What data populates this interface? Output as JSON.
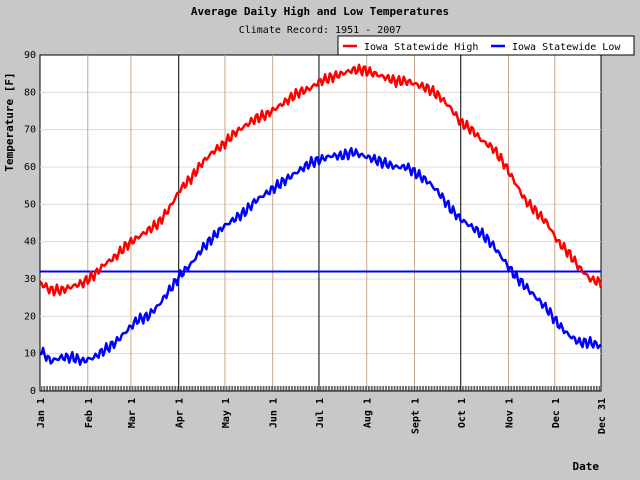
{
  "chart_data": {
    "type": "line",
    "title": "Average Daily High and Low Temperatures",
    "subtitle": "Climate Record: 1951 - 2007",
    "xlabel": "Date",
    "ylabel": "Temperature [F]",
    "ylim": [
      0,
      90
    ],
    "xlim_day_of_year": [
      1,
      365
    ],
    "y_ticks": [
      0,
      10,
      20,
      30,
      40,
      50,
      60,
      70,
      80,
      90
    ],
    "x_ticks": [
      {
        "label": "Jan 1",
        "day": 1
      },
      {
        "label": "Feb 1",
        "day": 32
      },
      {
        "label": "Mar 1",
        "day": 60
      },
      {
        "label": "Apr 1",
        "day": 91
      },
      {
        "label": "May 1",
        "day": 121
      },
      {
        "label": "Jun 1",
        "day": 152
      },
      {
        "label": "Jul 1",
        "day": 182
      },
      {
        "label": "Aug 1",
        "day": 213
      },
      {
        "label": "Sept 1",
        "day": 244
      },
      {
        "label": "Oct 1",
        "day": 274
      },
      {
        "label": "Nov 1",
        "day": 305
      },
      {
        "label": "Dec 1",
        "day": 335
      },
      {
        "label": "Dec 31",
        "day": 365
      }
    ],
    "grid": true,
    "legend_position": "top-right",
    "series": [
      {
        "name": "Iowa Statewide High",
        "color": "#ff0000",
        "x_day_of_year": [
          1,
          8,
          15,
          22,
          29,
          36,
          43,
          50,
          57,
          64,
          71,
          78,
          85,
          92,
          99,
          106,
          113,
          120,
          127,
          134,
          141,
          148,
          155,
          162,
          169,
          176,
          183,
          190,
          197,
          204,
          211,
          218,
          225,
          232,
          239,
          246,
          253,
          260,
          267,
          274,
          281,
          288,
          295,
          302,
          309,
          316,
          323,
          330,
          337,
          344,
          351,
          358,
          365
        ],
        "values": [
          29,
          27,
          27,
          28,
          29,
          31,
          34,
          36,
          39,
          41,
          43,
          45,
          49,
          54,
          57,
          61,
          64,
          66,
          69,
          71,
          73,
          74,
          76,
          78,
          80,
          81,
          83,
          84,
          85,
          86,
          86,
          85,
          84,
          83,
          83,
          82,
          81,
          79,
          76,
          72,
          70,
          67,
          65,
          61,
          56,
          51,
          48,
          45,
          40,
          37,
          33,
          30,
          29
        ]
      },
      {
        "name": "Iowa Statewide Low",
        "color": "#0000ff",
        "x_day_of_year": [
          1,
          8,
          15,
          22,
          29,
          36,
          43,
          50,
          57,
          64,
          71,
          78,
          85,
          92,
          99,
          106,
          113,
          120,
          127,
          134,
          141,
          148,
          155,
          162,
          169,
          176,
          183,
          190,
          197,
          204,
          211,
          218,
          225,
          232,
          239,
          246,
          253,
          260,
          267,
          274,
          281,
          288,
          295,
          302,
          309,
          316,
          323,
          330,
          337,
          344,
          351,
          358,
          365
        ],
        "values": [
          11,
          8,
          9,
          9,
          8,
          9,
          11,
          13,
          16,
          19,
          20,
          23,
          27,
          31,
          34,
          38,
          41,
          44,
          46,
          48,
          51,
          53,
          55,
          57,
          59,
          61,
          62,
          63,
          63,
          64,
          63,
          62,
          61,
          60,
          60,
          58,
          56,
          53,
          49,
          46,
          44,
          42,
          39,
          35,
          31,
          28,
          25,
          22,
          18,
          15,
          13,
          13,
          12
        ]
      }
    ],
    "reference_lines": [
      {
        "axis": "y",
        "value": 32,
        "color": "#0000ff"
      }
    ]
  }
}
